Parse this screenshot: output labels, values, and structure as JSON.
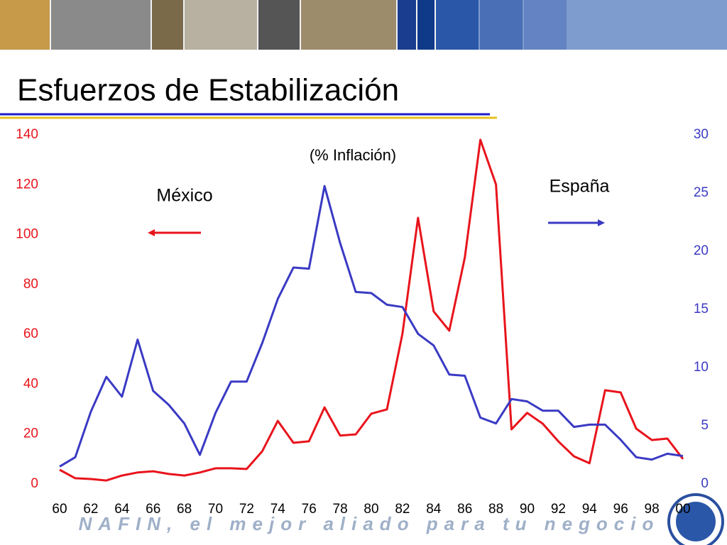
{
  "chart_data": {
    "type": "line",
    "title": "Esfuerzos de Estabilización",
    "subtitle": "(% Inflación)",
    "annotations": [
      "México",
      "España"
    ],
    "footer": "NAFIN, el mejor aliado para tu negocio",
    "categories": [
      "60",
      null,
      "62",
      null,
      "64",
      null,
      "66",
      null,
      "68",
      null,
      "70",
      null,
      "72",
      null,
      "74",
      null,
      "76",
      null,
      "78",
      null,
      "80",
      null,
      "82",
      null,
      "84",
      null,
      "86",
      null,
      "88",
      null,
      "90",
      null,
      "92",
      null,
      "94",
      null,
      "96",
      null,
      "98",
      null,
      "00"
    ],
    "series": [
      {
        "name": "México",
        "color": "#e8141c",
        "axis": "y",
        "values": [
          5.7,
          2.3,
          2.0,
          1.4,
          3.4,
          4.6,
          5.1,
          4.0,
          3.4,
          4.6,
          6.3,
          6.3,
          6.0,
          13.1,
          25.3,
          16.5,
          17.1,
          30.7,
          19.4,
          19.9,
          28.2,
          29.9,
          60.3,
          106.7,
          69.2,
          61.5,
          90.8,
          138.0,
          120.1,
          21.9,
          28.5,
          24.2,
          17.1,
          11.1,
          8.3,
          37.6,
          36.7,
          22.2,
          17.6,
          18.2,
          10.0
        ]
      },
      {
        "name": "España",
        "color": "#3a3ac4",
        "axis": "y2",
        "values": [
          1.5,
          2.3,
          6.2,
          9.2,
          7.5,
          12.4,
          8.0,
          6.8,
          5.2,
          2.5,
          6.1,
          8.8,
          8.8,
          12.1,
          15.9,
          18.6,
          18.5,
          25.6,
          20.7,
          16.5,
          16.4,
          15.4,
          15.2,
          12.9,
          11.9,
          9.4,
          9.3,
          5.7,
          5.2,
          7.3,
          7.1,
          6.3,
          6.3,
          4.9,
          5.1,
          5.1,
          3.8,
          2.3,
          2.1,
          2.6,
          2.4
        ]
      }
    ],
    "ylim": [
      0,
      140
    ],
    "yticks": [
      0,
      20,
      40,
      60,
      80,
      100,
      120,
      140
    ],
    "y2lim": [
      0,
      30
    ],
    "y2ticks": [
      0,
      5,
      10,
      15,
      20,
      25,
      30
    ],
    "ytick_color": "#e8141c",
    "y2tick_color": "#3a3ac4",
    "grid": false
  }
}
